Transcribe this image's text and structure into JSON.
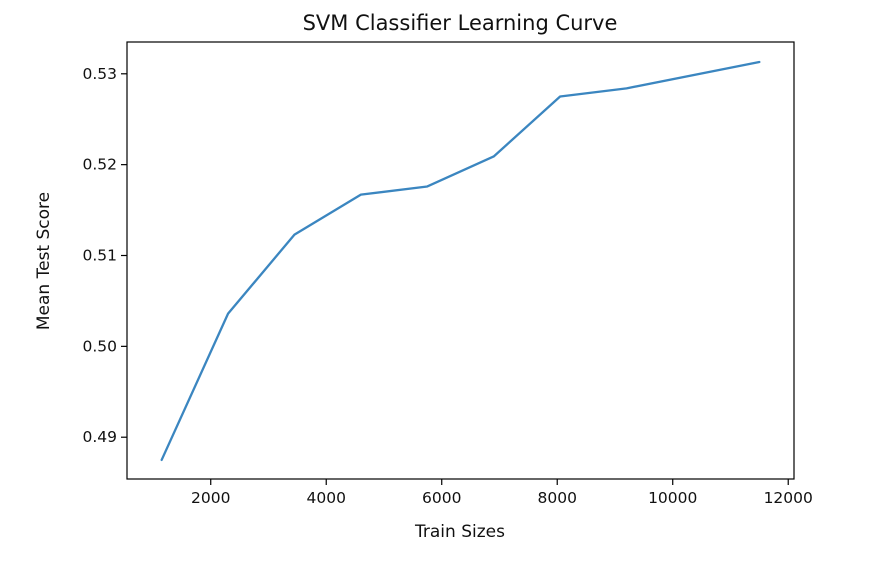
{
  "chart_data": {
    "type": "line",
    "title": "SVM Classifier Learning Curve",
    "xlabel": "Train Sizes",
    "ylabel": "Mean Test Score",
    "xlim": [
      550,
      12100
    ],
    "ylim": [
      0.4854,
      0.5335
    ],
    "xticks": [
      2000,
      4000,
      6000,
      8000,
      10000,
      12000
    ],
    "xtick_labels": [
      "2000",
      "4000",
      "6000",
      "8000",
      "10000",
      "12000"
    ],
    "yticks": [
      0.49,
      0.5,
      0.51,
      0.52,
      0.53
    ],
    "ytick_labels": [
      "0.49",
      "0.50",
      "0.51",
      "0.52",
      "0.53"
    ],
    "grid": false,
    "series": [
      {
        "color": "#3b86c0",
        "x": [
          1150,
          2300,
          3450,
          4600,
          5750,
          6900,
          8050,
          9200,
          11500
        ],
        "y": [
          0.4875,
          0.5036,
          0.5123,
          0.5167,
          0.5176,
          0.5209,
          0.5275,
          0.5284,
          0.5313
        ]
      }
    ]
  }
}
